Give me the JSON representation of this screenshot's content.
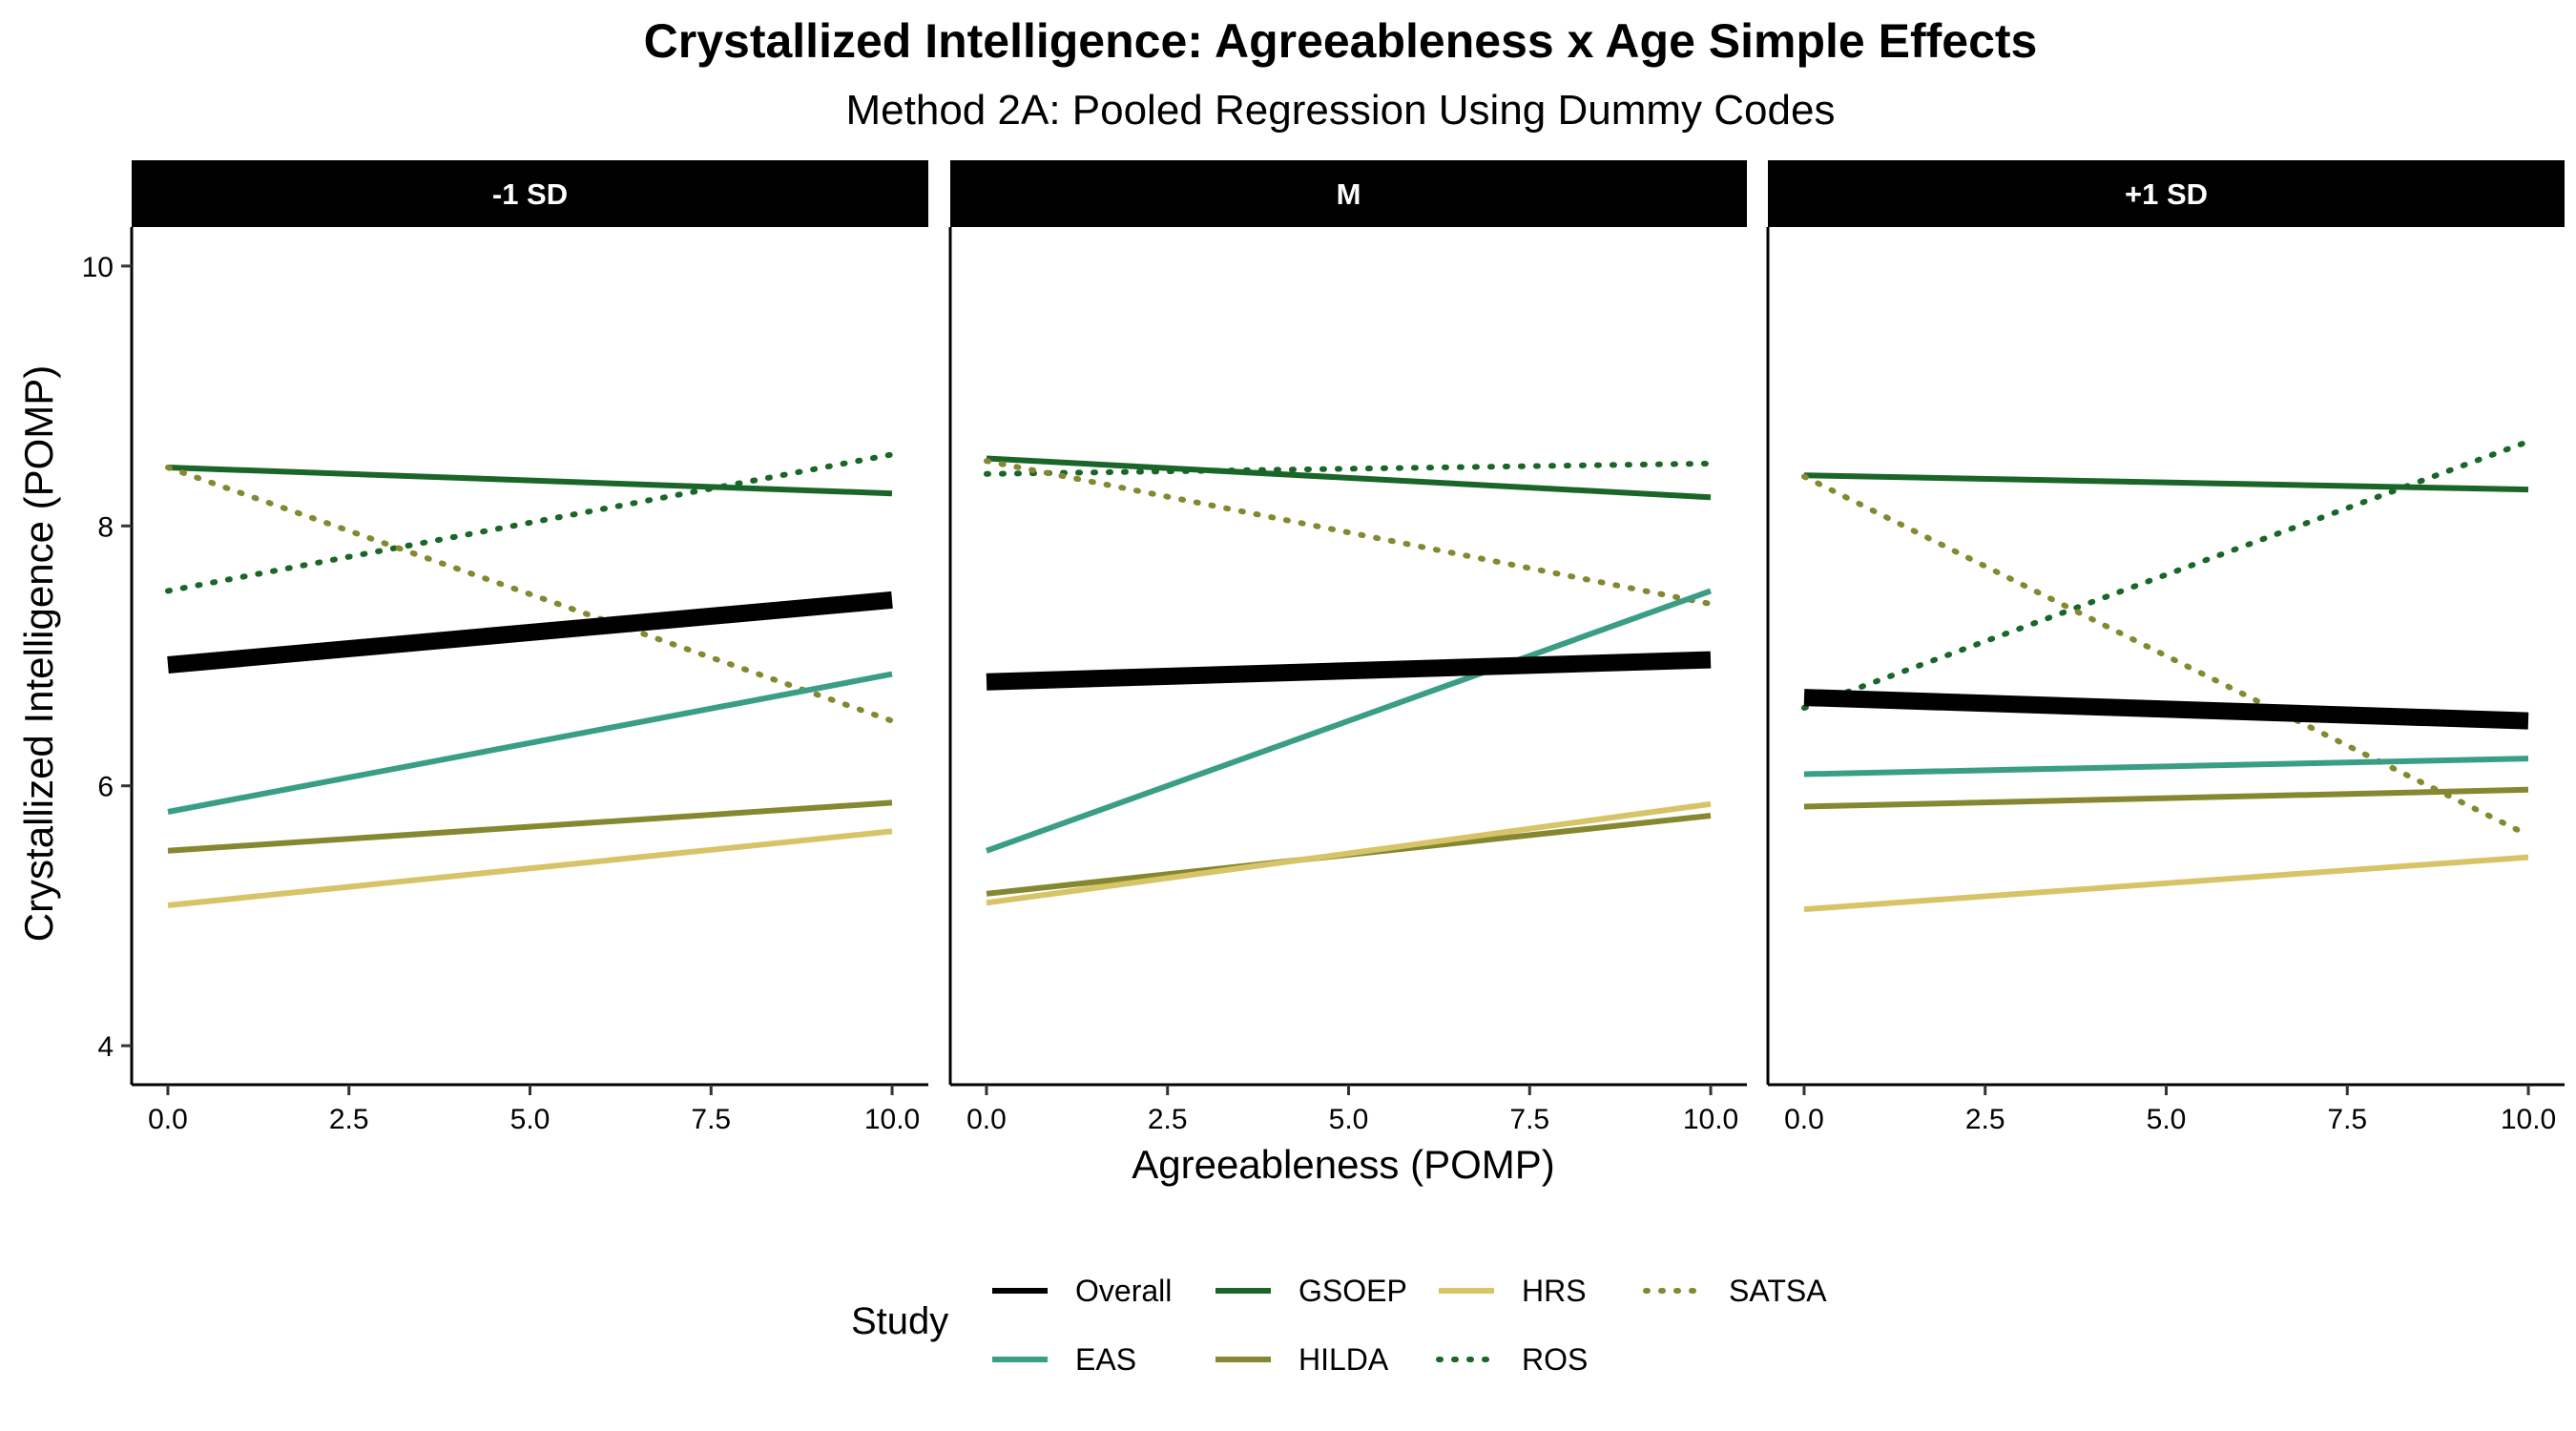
{
  "chart_data": {
    "type": "line",
    "title": "Crystallized Intelligence: Agreeableness x Age Simple Effects",
    "subtitle": "Method 2A: Pooled Regression Using Dummy Codes",
    "xlabel": "Agreeableness (POMP)",
    "ylabel": "Crystallized Intelligence (POMP)",
    "xlim": [
      -0.5,
      10.5
    ],
    "ylim": [
      3.7,
      10.3
    ],
    "x_ticks": [
      0,
      2.5,
      5,
      7.5,
      10
    ],
    "x_tick_labels": [
      "0.0",
      "2.5",
      "5.0",
      "7.5",
      "10.0"
    ],
    "y_ticks": [
      4,
      6,
      8,
      10
    ],
    "y_tick_labels": [
      "4",
      "6",
      "8",
      "10"
    ],
    "legend": {
      "title": "Study",
      "position": "bottom",
      "entries": [
        {
          "label": "Overall",
          "color": "#000000",
          "dash": "solid",
          "width": 6
        },
        {
          "label": "EAS",
          "color": "#3A9E86",
          "dash": "solid",
          "width": 6
        },
        {
          "label": "GSOEP",
          "color": "#1A6628",
          "dash": "solid",
          "width": 6
        },
        {
          "label": "HILDA",
          "color": "#858830",
          "dash": "solid",
          "width": 6
        },
        {
          "label": "HRS",
          "color": "#D8C468",
          "dash": "solid",
          "width": 6
        },
        {
          "label": "ROS",
          "color": "#1A6628",
          "dash": "dotted",
          "width": 6
        },
        {
          "label": "SATSA",
          "color": "#858830",
          "dash": "dotted",
          "width": 6
        }
      ]
    },
    "panels": [
      {
        "label": "-1 SD",
        "series": [
          {
            "name": "GSOEP",
            "color": "#1A6628",
            "dash": "solid",
            "width": 6,
            "x": [
              0,
              10
            ],
            "y": [
              8.45,
              8.25
            ]
          },
          {
            "name": "ROS",
            "color": "#1A6628",
            "dash": "dotted",
            "width": 6,
            "x": [
              0,
              10
            ],
            "y": [
              7.5,
              8.55
            ]
          },
          {
            "name": "SATSA",
            "color": "#858830",
            "dash": "dotted",
            "width": 6,
            "x": [
              0,
              10
            ],
            "y": [
              8.45,
              6.5
            ]
          },
          {
            "name": "EAS",
            "color": "#3A9E86",
            "dash": "solid",
            "width": 6,
            "x": [
              0,
              10
            ],
            "y": [
              5.8,
              6.86
            ]
          },
          {
            "name": "HILDA",
            "color": "#858830",
            "dash": "solid",
            "width": 6,
            "x": [
              0,
              10
            ],
            "y": [
              5.5,
              5.87
            ]
          },
          {
            "name": "HRS",
            "color": "#D8C468",
            "dash": "solid",
            "width": 6,
            "x": [
              0,
              10
            ],
            "y": [
              5.08,
              5.65
            ]
          },
          {
            "name": "Overall",
            "color": "#000000",
            "dash": "solid",
            "width": 18,
            "x": [
              0,
              10
            ],
            "y": [
              6.93,
              7.43
            ]
          }
        ]
      },
      {
        "label": "M",
        "series": [
          {
            "name": "GSOEP",
            "color": "#1A6628",
            "dash": "solid",
            "width": 6,
            "x": [
              0,
              10
            ],
            "y": [
              8.52,
              8.22
            ]
          },
          {
            "name": "ROS",
            "color": "#1A6628",
            "dash": "dotted",
            "width": 6,
            "x": [
              0,
              10
            ],
            "y": [
              8.4,
              8.48
            ]
          },
          {
            "name": "SATSA",
            "color": "#858830",
            "dash": "dotted",
            "width": 6,
            "x": [
              0,
              10
            ],
            "y": [
              8.5,
              7.4
            ]
          },
          {
            "name": "EAS",
            "color": "#3A9E86",
            "dash": "solid",
            "width": 6,
            "x": [
              0,
              10
            ],
            "y": [
              5.5,
              7.5
            ]
          },
          {
            "name": "HILDA",
            "color": "#858830",
            "dash": "solid",
            "width": 6,
            "x": [
              0,
              10
            ],
            "y": [
              5.17,
              5.77
            ]
          },
          {
            "name": "HRS",
            "color": "#D8C468",
            "dash": "solid",
            "width": 6,
            "x": [
              0,
              10
            ],
            "y": [
              5.1,
              5.86
            ]
          },
          {
            "name": "Overall",
            "color": "#000000",
            "dash": "solid",
            "width": 18,
            "x": [
              0,
              10
            ],
            "y": [
              6.8,
              6.97
            ]
          }
        ]
      },
      {
        "label": "+1 SD",
        "series": [
          {
            "name": "GSOEP",
            "color": "#1A6628",
            "dash": "solid",
            "width": 6,
            "x": [
              0,
              10
            ],
            "y": [
              8.39,
              8.28
            ]
          },
          {
            "name": "ROS",
            "color": "#1A6628",
            "dash": "dotted",
            "width": 6,
            "x": [
              0,
              10
            ],
            "y": [
              6.6,
              8.65
            ]
          },
          {
            "name": "SATSA",
            "color": "#858830",
            "dash": "dotted",
            "width": 6,
            "x": [
              0,
              10
            ],
            "y": [
              8.38,
              5.62
            ]
          },
          {
            "name": "EAS",
            "color": "#3A9E86",
            "dash": "solid",
            "width": 6,
            "x": [
              0,
              10
            ],
            "y": [
              6.09,
              6.21
            ]
          },
          {
            "name": "HILDA",
            "color": "#858830",
            "dash": "solid",
            "width": 6,
            "x": [
              0,
              10
            ],
            "y": [
              5.84,
              5.97
            ]
          },
          {
            "name": "HRS",
            "color": "#D8C468",
            "dash": "solid",
            "width": 6,
            "x": [
              0,
              10
            ],
            "y": [
              5.05,
              5.45
            ]
          },
          {
            "name": "Overall",
            "color": "#000000",
            "dash": "solid",
            "width": 18,
            "x": [
              0,
              10
            ],
            "y": [
              6.68,
              6.5
            ]
          }
        ]
      }
    ]
  }
}
